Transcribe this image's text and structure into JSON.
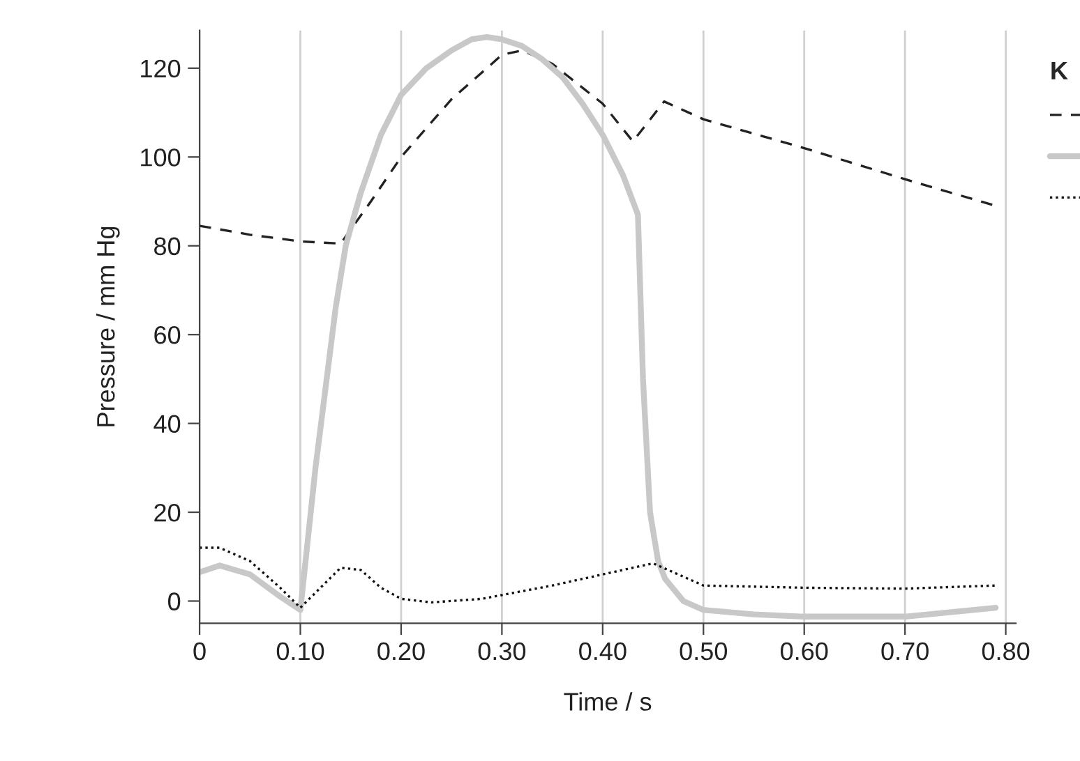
{
  "chart_data": {
    "type": "line",
    "xlabel": "Time / s",
    "ylabel": "Pressure / mm Hg",
    "legend_title": "K",
    "xlim": [
      0,
      0.81
    ],
    "ylim": [
      -5,
      128.5
    ],
    "xticks": [
      0,
      {
        "value": 0.1,
        "label": "0.10"
      },
      {
        "value": 0.2,
        "label": "0.20"
      },
      {
        "value": 0.3,
        "label": "0.30"
      },
      {
        "value": 0.4,
        "label": "0.40"
      },
      {
        "value": 0.5,
        "label": "0.50"
      },
      {
        "value": 0.6,
        "label": "0.60"
      },
      {
        "value": 0.7,
        "label": "0.70"
      },
      {
        "value": 0.8,
        "label": "0.80"
      }
    ],
    "yticks": [
      0,
      20,
      40,
      60,
      80,
      100,
      120
    ],
    "grid": "x",
    "series": [
      {
        "color": "#222222",
        "line_style": "dashed",
        "x": [
          0,
          0.05,
          0.1,
          0.14,
          0.17,
          0.2,
          0.25,
          0.3,
          0.32,
          0.35,
          0.4,
          0.43,
          0.461,
          0.5,
          0.6,
          0.7,
          0.79
        ],
        "values": [
          84.5,
          82.5,
          81,
          80.5,
          90,
          100,
          113,
          123,
          124,
          121,
          112,
          103.5,
          112.5,
          108.5,
          102,
          95,
          89
        ]
      },
      {
        "color": "#c8c8c8",
        "line_style": "solid",
        "x": [
          0,
          0.02,
          0.05,
          0.08,
          0.1,
          0.115,
          0.135,
          0.145,
          0.16,
          0.18,
          0.2,
          0.225,
          0.25,
          0.27,
          0.285,
          0.3,
          0.32,
          0.34,
          0.36,
          0.38,
          0.4,
          0.42,
          0.435,
          0.44,
          0.447,
          0.455,
          0.462,
          0.48,
          0.5,
          0.55,
          0.6,
          0.7,
          0.79
        ],
        "values": [
          6.5,
          8,
          6,
          1,
          -2,
          30,
          66,
          80,
          92,
          105,
          114,
          120,
          124,
          126.5,
          127,
          126.5,
          125,
          122,
          118,
          112,
          105,
          96,
          87,
          50,
          20,
          9,
          5,
          0,
          -2,
          -3,
          -3.5,
          -3.5,
          -1.5
        ]
      },
      {
        "color": "#111111",
        "line_style": "dotted",
        "x": [
          0,
          0.02,
          0.05,
          0.08,
          0.1,
          0.12,
          0.14,
          0.16,
          0.18,
          0.2,
          0.23,
          0.28,
          0.35,
          0.4,
          0.45,
          0.475,
          0.5,
          0.6,
          0.7,
          0.79
        ],
        "values": [
          12,
          12,
          9,
          3,
          -1.5,
          3,
          7.5,
          7,
          3,
          0.5,
          -0.3,
          0.5,
          3.5,
          6,
          8.5,
          6,
          3.5,
          3,
          2.8,
          3.5
        ]
      }
    ]
  }
}
